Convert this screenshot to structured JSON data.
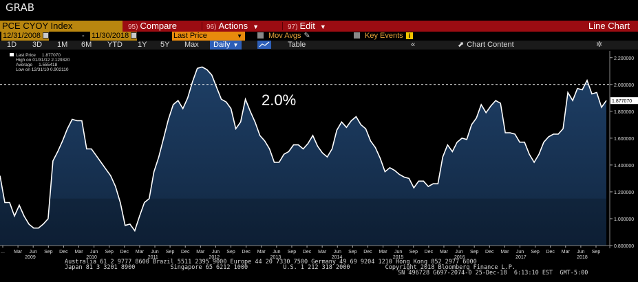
{
  "window": {
    "title": "GRAB"
  },
  "toolbar": {
    "ticker": "PCE CYOY Index",
    "compare": {
      "num": "95)",
      "label": "Compare"
    },
    "actions": {
      "num": "96)",
      "label": "Actions"
    },
    "edit": {
      "num": "97)",
      "label": "Edit"
    },
    "chart_type": "Line Chart"
  },
  "range": {
    "start": "12/31/2008",
    "dash": "-",
    "end": "11/30/2018",
    "field": "Last Price",
    "mov_avgs": "Mov Avgs",
    "key_events": "Key Events"
  },
  "tabs": {
    "periods": [
      "1D",
      "3D",
      "1M",
      "6M",
      "YTD",
      "1Y",
      "5Y",
      "Max"
    ],
    "frequency": "Daily",
    "table": "Table",
    "chart_content": "Chart Content"
  },
  "legend": {
    "last_label": "Last Price",
    "last_val": "1.877070",
    "high_label": "High on 01/31/12",
    "high_val": "2.129320",
    "avg_label": "Average",
    "avg_val": "1.555418",
    "low_label": "Low on 12/31/10",
    "low_val": "0.902110"
  },
  "annotation": "2.0%",
  "last_marker": "1.877070",
  "footer": {
    "line1": "Australia 61 2 9777 8600 Brazil 5511 2395 9000 Europe 44 20 7330 7500 Germany 49 69 9204 1210 Hong Kong 852 2977 6000",
    "line2": "Japan 81 3 3201 8900          Singapore 65 6212 1000          U.S. 1 212 318 2000          Copyright 2018 Bloomberg Finance L.P.",
    "line3": "SN 496728 G697-2074-0 25-Dec-18  6:13:10 EST  GMT-5:00"
  },
  "colors": {
    "line": "#ffffff",
    "fill_top": "#1e3f66",
    "fill_bottom": "#112640",
    "ref_line": "#ffffff",
    "toolbar_red": "#9b0c12",
    "ticker_amber": "#b9860f"
  },
  "chart_data": {
    "type": "area",
    "title": "PCE CYOY Index",
    "ylabel": "",
    "ylim": [
      0.8,
      2.25
    ],
    "yticks": [
      0.8,
      1.0,
      1.2,
      1.4,
      1.6,
      1.8,
      2.0,
      2.2
    ],
    "ytick_labels": [
      "0.800000",
      "1.000000",
      "1.200000",
      "1.400000",
      "1.600000",
      "1.800000",
      "2.000000",
      "2.200000"
    ],
    "reference_line": 2.0,
    "grid": false,
    "legend": "top-left",
    "x_start": "2008-12",
    "x_tick_labels": [
      "...",
      "Mar",
      "Jun",
      "Sep",
      "Dec",
      "Mar",
      "Jun",
      "Sep",
      "Dec",
      "Mar",
      "Jun",
      "Sep",
      "Dec",
      "Mar",
      "Jun",
      "Sep",
      "Dec",
      "Mar",
      "Jun",
      "Sep",
      "Dec",
      "Mar",
      "Jun",
      "Sep",
      "Dec",
      "Mar",
      "Jun",
      "Sep",
      "Dec",
      "Mar",
      "Jun",
      "Sep",
      "Dec",
      "Mar",
      "Jun",
      "Sep",
      "Dec",
      "Mar",
      "Jun",
      "Sep"
    ],
    "x_year_labels": [
      "2009",
      "2010",
      "2011",
      "2012",
      "2013",
      "2014",
      "2015",
      "2016",
      "2017",
      "2018"
    ],
    "series": [
      {
        "values": [
          1.32,
          1.12,
          1.12,
          1.02,
          1.1,
          1.02,
          0.96,
          0.93,
          0.93,
          0.96,
          1.0,
          1.43,
          1.5,
          1.58,
          1.67,
          1.74,
          1.73,
          1.73,
          1.52,
          1.52,
          1.47,
          1.42,
          1.37,
          1.32,
          1.24,
          1.12,
          0.95,
          0.96,
          0.91,
          1.02,
          1.12,
          1.15,
          1.35,
          1.46,
          1.6,
          1.74,
          1.85,
          1.88,
          1.82,
          1.9,
          2.02,
          2.12,
          2.13,
          2.11,
          2.07,
          1.98,
          1.89,
          1.87,
          1.82,
          1.67,
          1.72,
          1.89,
          1.8,
          1.72,
          1.62,
          1.58,
          1.52,
          1.42,
          1.42,
          1.48,
          1.5,
          1.55,
          1.55,
          1.52,
          1.56,
          1.62,
          1.54,
          1.49,
          1.46,
          1.52,
          1.66,
          1.72,
          1.68,
          1.73,
          1.76,
          1.7,
          1.67,
          1.58,
          1.53,
          1.45,
          1.35,
          1.38,
          1.36,
          1.33,
          1.31,
          1.3,
          1.23,
          1.28,
          1.28,
          1.24,
          1.26,
          1.26,
          1.46,
          1.55,
          1.5,
          1.57,
          1.6,
          1.59,
          1.7,
          1.75,
          1.85,
          1.79,
          1.84,
          1.88,
          1.86,
          1.64,
          1.64,
          1.63,
          1.57,
          1.57,
          1.48,
          1.42,
          1.48,
          1.57,
          1.61,
          1.63,
          1.63,
          1.67,
          1.94,
          1.88,
          1.97,
          1.96,
          2.03,
          1.93,
          1.94,
          1.83,
          1.88
        ]
      }
    ]
  }
}
